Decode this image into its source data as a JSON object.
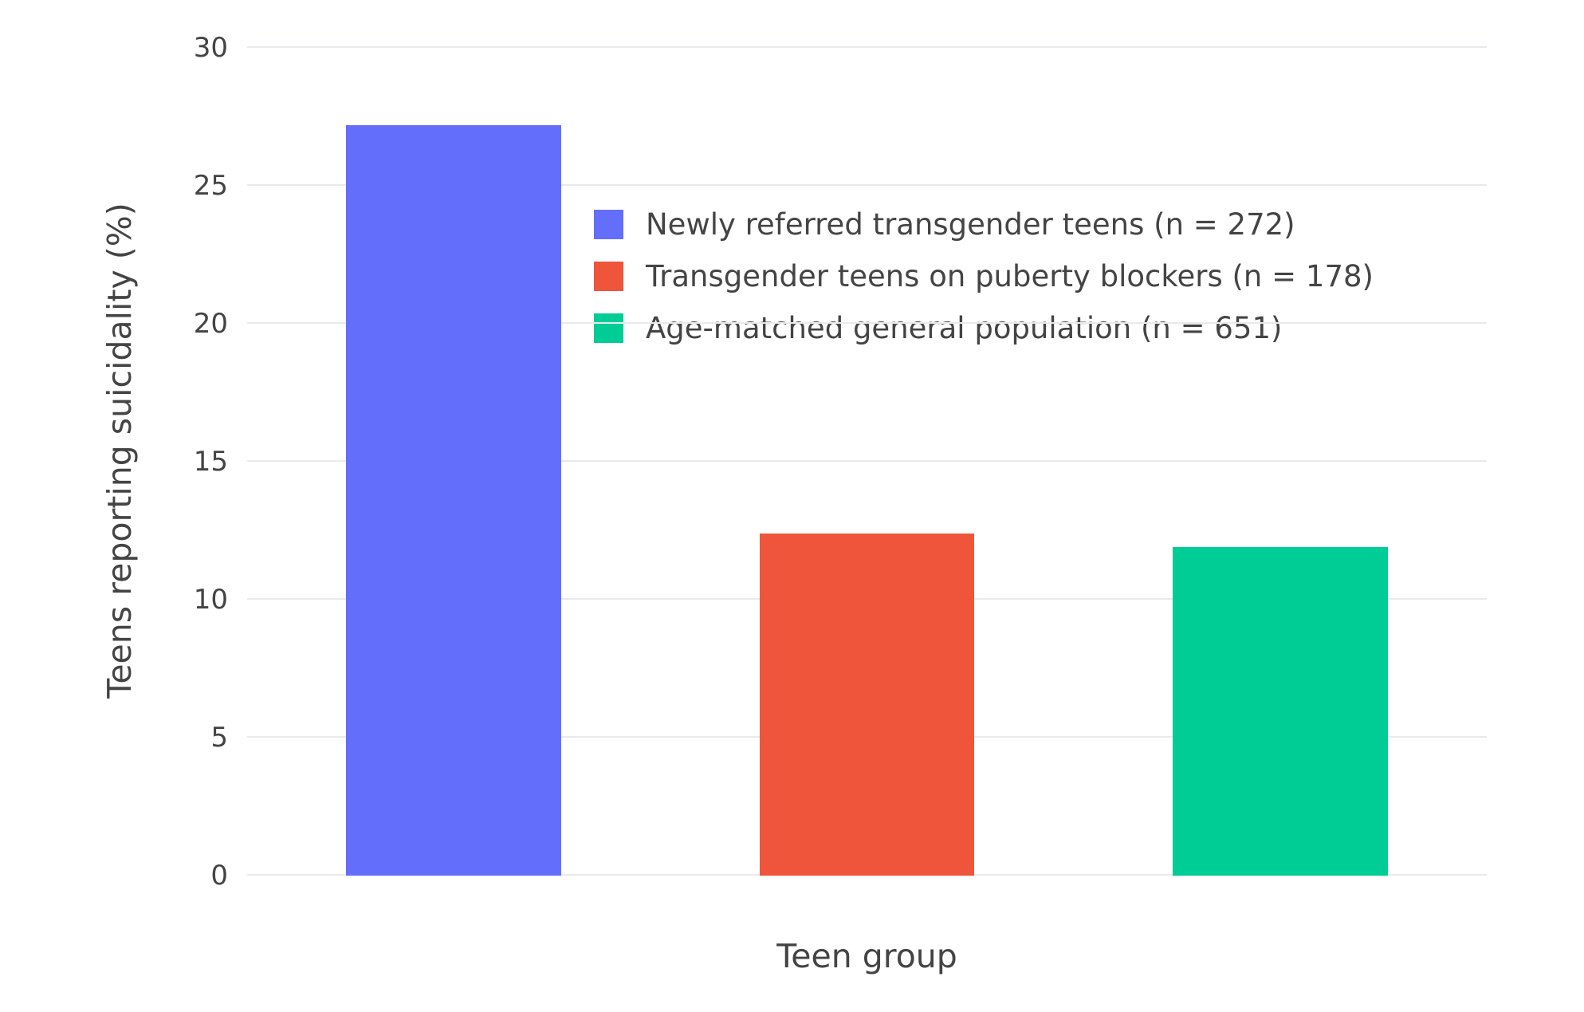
{
  "chart_data": {
    "type": "bar",
    "title": "",
    "xlabel": "Teen group",
    "ylabel": "Teens reporting suicidality (%)",
    "ylim": [
      0,
      30
    ],
    "yticks": [
      0,
      5,
      10,
      15,
      20,
      25,
      30
    ],
    "grid": true,
    "legend_position": "inside plot, upper center-right",
    "background_color": "#ffffff",
    "gridline_color": "#e8eaed",
    "series": [
      {
        "name": "Newly referred transgender teens (n = 272)",
        "value": 27.2,
        "color": "#636EFA"
      },
      {
        "name": "Transgender teens on puberty blockers (n = 178)",
        "value": 12.4,
        "color": "#EF553B"
      },
      {
        "name": "Age-matched general population (n = 651)",
        "value": 11.9,
        "color": "#00CC96"
      }
    ]
  }
}
